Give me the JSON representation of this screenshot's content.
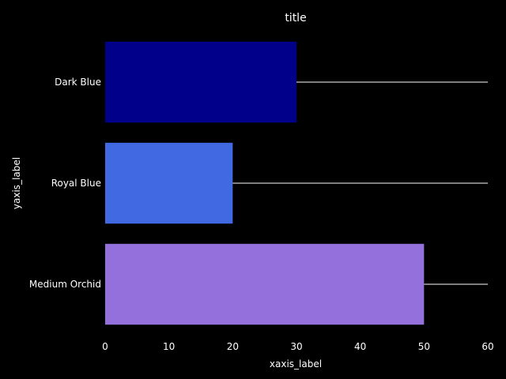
{
  "chart_data": {
    "type": "bar",
    "orientation": "horizontal",
    "title": "title",
    "xlabel": "xaxis_label",
    "ylabel": "yaxis_label",
    "categories": [
      "Dark Blue",
      "Royal Blue",
      "Medium Orchid"
    ],
    "values": [
      30,
      20,
      50
    ],
    "colors": [
      "#00008b",
      "#4169e1",
      "#9370db"
    ],
    "xlim": [
      0,
      60
    ],
    "xticks": [
      0,
      10,
      20,
      30,
      40,
      50,
      60
    ],
    "grid": false,
    "legend": "none",
    "background": "#000000",
    "text_color": "#ffffff",
    "reference_line_color": "#ffffff"
  }
}
